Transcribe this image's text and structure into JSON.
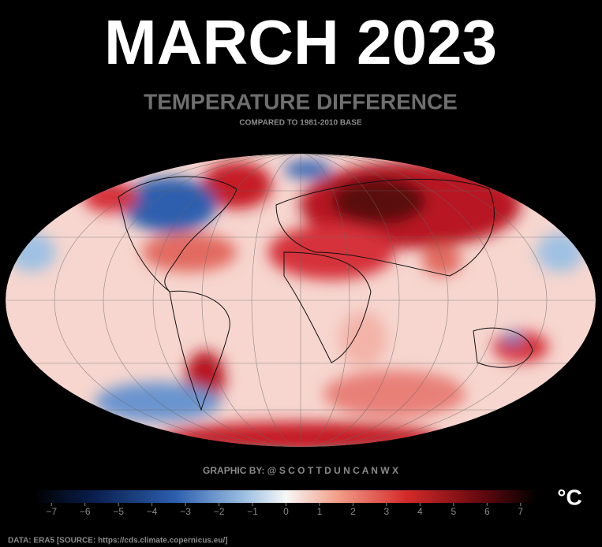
{
  "chart_data": {
    "type": "map",
    "title": "MARCH 2023",
    "subtitle": "TEMPERATURE DIFFERENCE",
    "baseline_note": "COMPARED TO 1981-2010 BASE",
    "credit": "GRAPHIC BY: @ S C O T T D U N C A N W X",
    "colorbar_unit": "°C",
    "colorbar_lim": [
      -7.5,
      7.5
    ],
    "colorbar_ticks": [
      {
        "value": -7,
        "label": "−7"
      },
      {
        "value": -6,
        "label": "−6"
      },
      {
        "value": -5,
        "label": "−5"
      },
      {
        "value": -4,
        "label": "−4"
      },
      {
        "value": -3,
        "label": "−3"
      },
      {
        "value": -2,
        "label": "−2"
      },
      {
        "value": -1,
        "label": "−1"
      },
      0,
      1,
      2,
      3,
      4,
      5,
      6,
      7
    ],
    "source": "DATA: ERA5 [SOURCE: https://cds.climate.copernicus.eu/]"
  }
}
